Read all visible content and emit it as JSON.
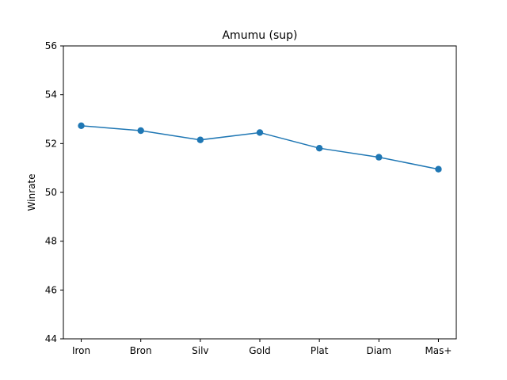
{
  "colors": {
    "series": "#1f77b4",
    "axis": "#000000",
    "background": "#ffffff"
  },
  "chart_data": {
    "type": "line",
    "title": "Amumu (sup)",
    "xlabel": "",
    "ylabel": "Winrate",
    "categories": [
      "Iron",
      "Bron",
      "Silv",
      "Gold",
      "Plat",
      "Diam",
      "Mas+"
    ],
    "series": [
      {
        "values": [
          52.73,
          52.53,
          52.15,
          52.45,
          51.81,
          51.44,
          50.95
        ],
        "marker": "circle"
      }
    ],
    "ylim": [
      44,
      56
    ],
    "yticks": [
      44,
      46,
      48,
      50,
      52,
      54,
      56
    ],
    "grid": false,
    "legend": "none"
  }
}
